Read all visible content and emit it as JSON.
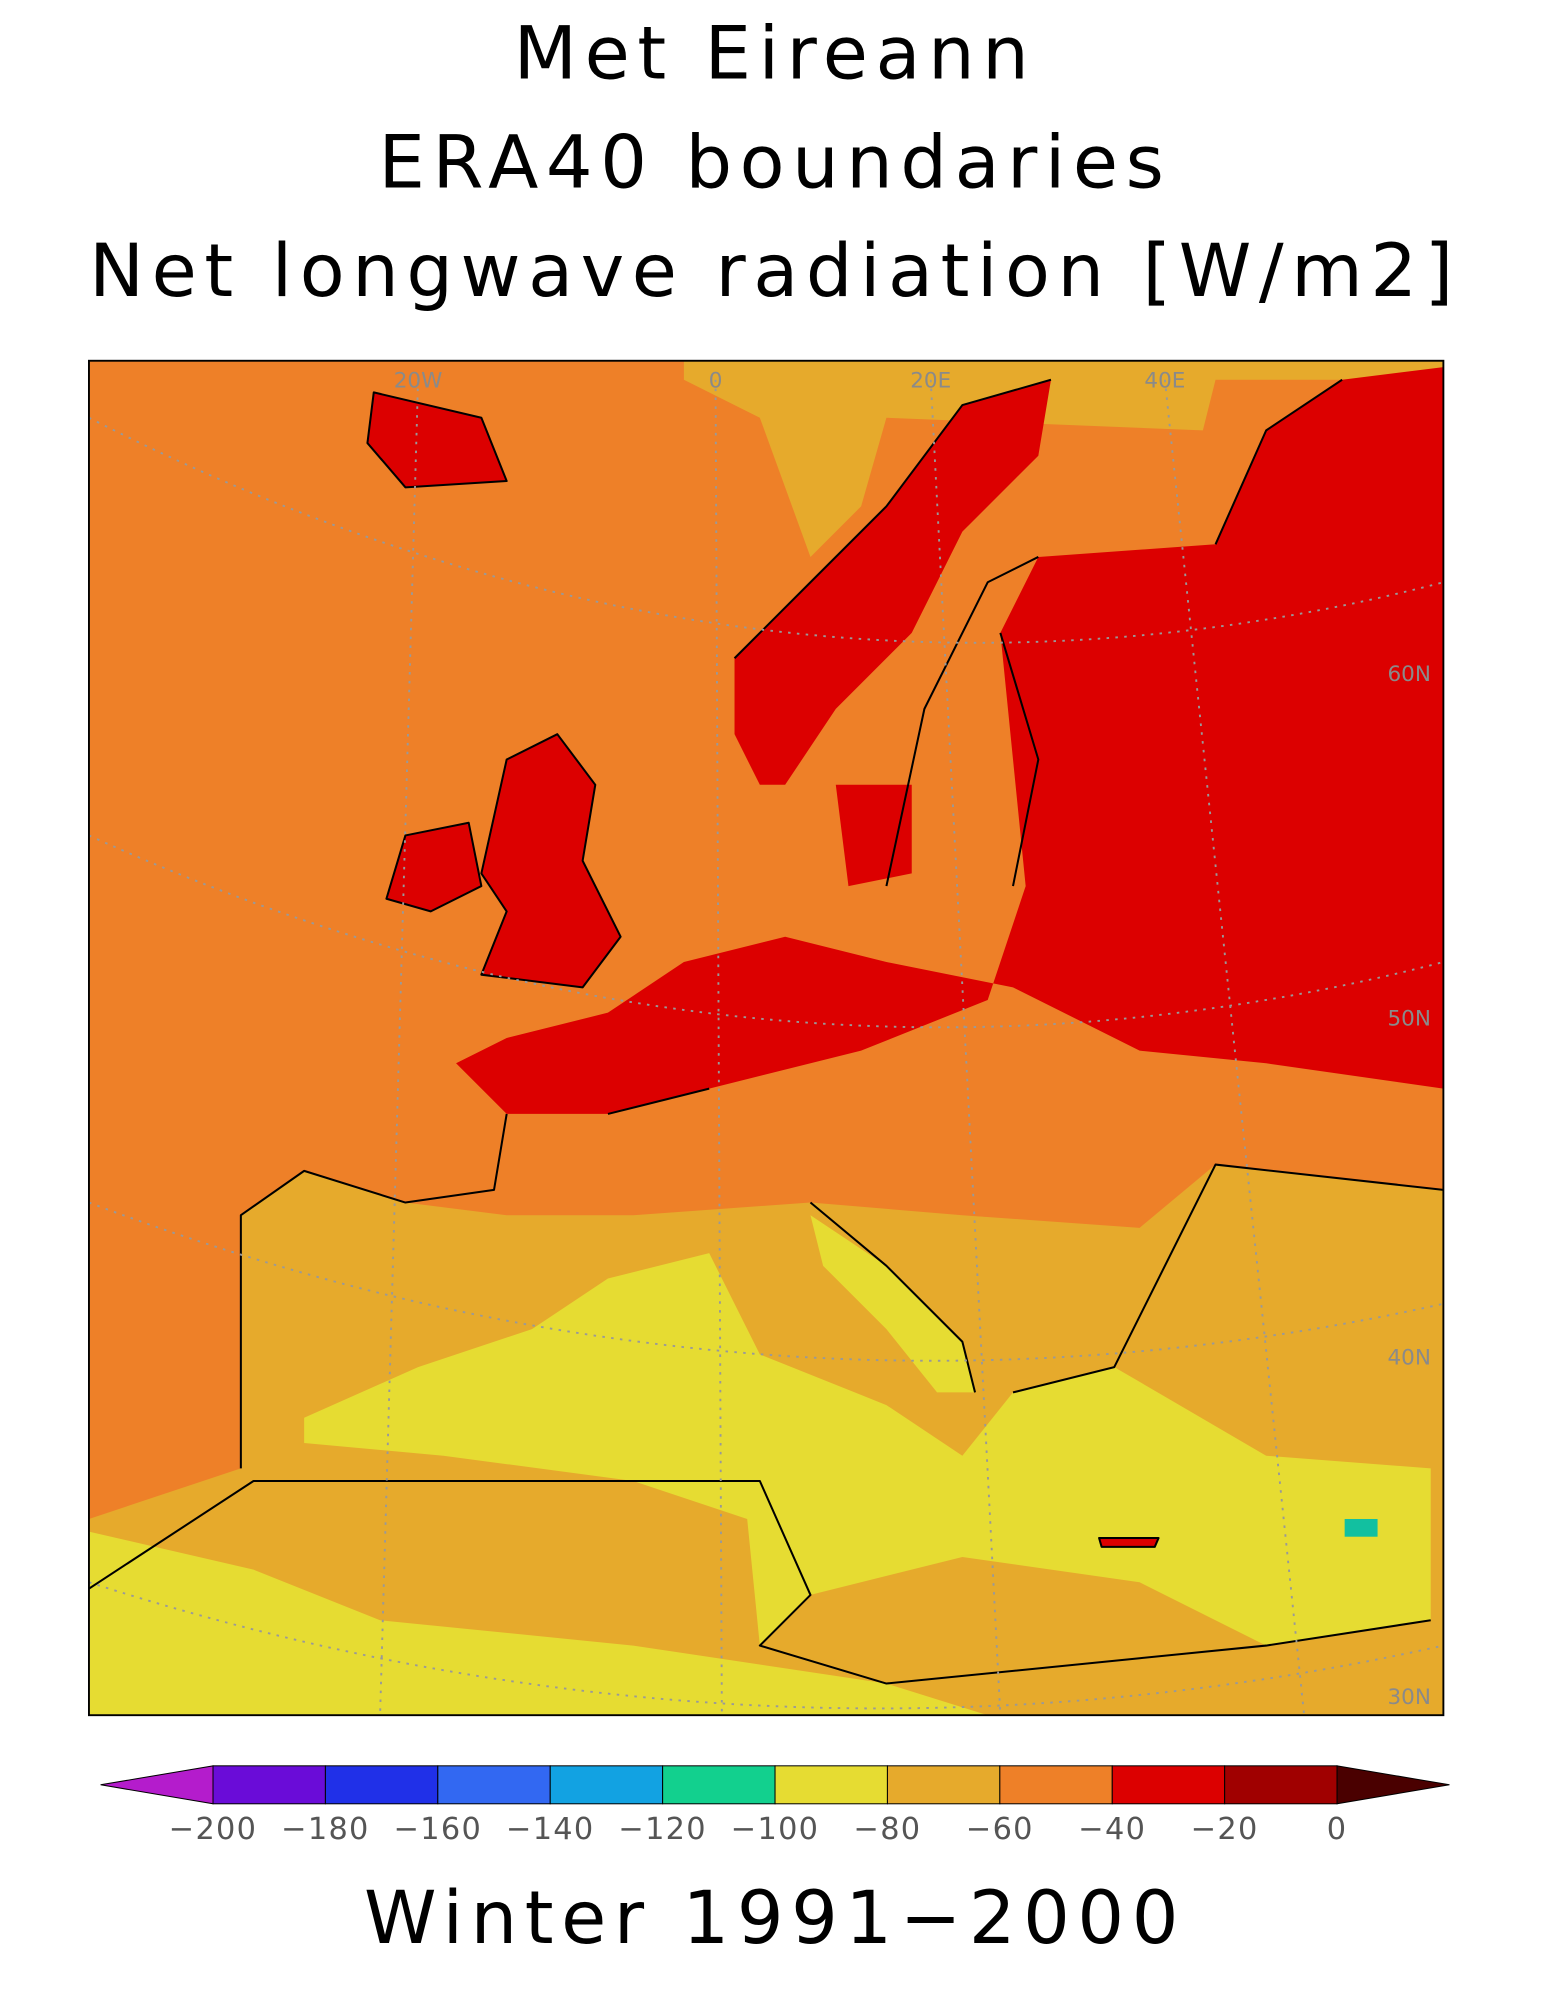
{
  "header": {
    "title_lines": [
      "Met Eireann",
      "ERA40 boundaries",
      "Net longwave radiation [W/m2]"
    ]
  },
  "map": {
    "lon_labels": [
      "20W",
      "0",
      "20E",
      "40E"
    ],
    "lat_labels": [
      "60N",
      "50N",
      "40N",
      "30N"
    ]
  },
  "colorbar": {
    "ticks": [
      {
        "value": -200,
        "label": "−200"
      },
      {
        "value": -180,
        "label": "−180"
      },
      {
        "value": -160,
        "label": "−160"
      },
      {
        "value": -140,
        "label": "−140"
      },
      {
        "value": -120,
        "label": "−120"
      },
      {
        "value": -100,
        "label": "−100"
      },
      {
        "value": -80,
        "label": "−80"
      },
      {
        "value": -60,
        "label": "−60"
      },
      {
        "value": -40,
        "label": "−40"
      },
      {
        "value": -20,
        "label": "−20"
      },
      0
    ],
    "colors": [
      "#b41ccc",
      "#6a0cd8",
      "#2030e8",
      "#3268f2",
      "#12a2e2",
      "#12d08e",
      "#e6dc32",
      "#e6aa2c",
      "#ee8028",
      "#dc0000",
      "#a00000",
      "#4a0000"
    ]
  },
  "footer": "Winter 1991−2000"
}
